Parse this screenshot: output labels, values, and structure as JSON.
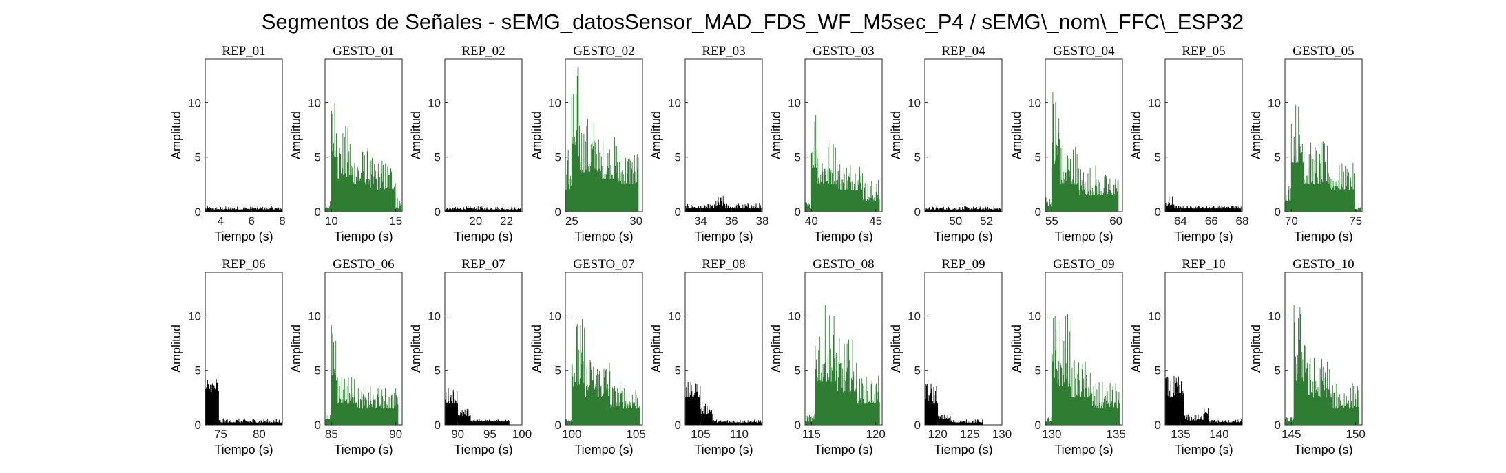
{
  "figure_title": "Segmentos de Señales - sEMG_datosSensor_MAD_FDS_WF_M5sec_P4 / sEMG\\_nom\\_FFC\\_ESP32",
  "colors": {
    "rest": "#000000",
    "gesture": "#2e7d32",
    "axes": "#262626"
  },
  "chart_data": [
    {
      "type": "bar",
      "title": "REP_01",
      "xlabel": "Tiempo (s)",
      "ylabel": "Amplitud",
      "xlim": [
        3,
        8
      ],
      "ylim": [
        0,
        14
      ],
      "xticks": [
        4,
        6,
        8
      ],
      "yticks": [
        0,
        5,
        10
      ],
      "color": "rest",
      "segments": [
        [
          3,
          8,
          0.2,
          0.5
        ]
      ]
    },
    {
      "type": "bar",
      "title": "GESTO_01",
      "xlabel": "Tiempo (s)",
      "ylabel": "Amplitud",
      "xlim": [
        9.5,
        15.5
      ],
      "ylim": [
        0,
        14
      ],
      "xticks": [
        10,
        15
      ],
      "yticks": [
        0,
        5,
        10
      ],
      "color": "gesture",
      "segments": [
        [
          9.5,
          10.0,
          0.3,
          1.0
        ],
        [
          10.0,
          10.5,
          5.0,
          11.5
        ],
        [
          10.5,
          11.5,
          3.0,
          8.0
        ],
        [
          11.5,
          13.0,
          2.5,
          6.0
        ],
        [
          13.0,
          15.0,
          2.0,
          5.0
        ],
        [
          15.0,
          15.5,
          0.3,
          1.5
        ]
      ]
    },
    {
      "type": "bar",
      "title": "REP_02",
      "xlabel": "Tiempo (s)",
      "ylabel": "Amplitud",
      "xlim": [
        18,
        23
      ],
      "ylim": [
        0,
        14
      ],
      "xticks": [
        20,
        22
      ],
      "yticks": [
        0,
        5,
        10
      ],
      "color": "rest",
      "segments": [
        [
          18,
          23,
          0.2,
          0.5
        ]
      ]
    },
    {
      "type": "bar",
      "title": "GESTO_02",
      "xlabel": "Tiempo (s)",
      "ylabel": "Amplitud",
      "xlim": [
        24.5,
        30.5
      ],
      "ylim": [
        0,
        14
      ],
      "xticks": [
        25,
        30
      ],
      "yticks": [
        0,
        5,
        10
      ],
      "color": "gesture",
      "segments": [
        [
          24.5,
          25.0,
          2.0,
          7.0
        ],
        [
          25.0,
          25.6,
          5.0,
          14.0
        ],
        [
          25.6,
          27.0,
          3.5,
          9.0
        ],
        [
          27.0,
          28.5,
          3.0,
          7.0
        ],
        [
          28.5,
          30.2,
          2.5,
          6.0
        ]
      ]
    },
    {
      "type": "bar",
      "title": "REP_03",
      "xlabel": "Tiempo (s)",
      "ylabel": "Amplitud",
      "xlim": [
        33,
        38
      ],
      "ylim": [
        0,
        14
      ],
      "xticks": [
        34,
        36,
        38
      ],
      "yticks": [
        0,
        5,
        10
      ],
      "color": "rest",
      "segments": [
        [
          33,
          35,
          0.3,
          0.7
        ],
        [
          35,
          35.6,
          0.5,
          1.5
        ],
        [
          35.6,
          38,
          0.3,
          0.8
        ]
      ]
    },
    {
      "type": "bar",
      "title": "GESTO_03",
      "xlabel": "Tiempo (s)",
      "ylabel": "Amplitud",
      "xlim": [
        39.5,
        45.5
      ],
      "ylim": [
        0,
        14
      ],
      "xticks": [
        40,
        45
      ],
      "yticks": [
        0,
        5,
        10
      ],
      "color": "gesture",
      "segments": [
        [
          39.5,
          40.0,
          0.3,
          1.0
        ],
        [
          40.0,
          40.5,
          4.0,
          11.0
        ],
        [
          40.5,
          42.0,
          2.5,
          7.0
        ],
        [
          42.0,
          44.0,
          2.0,
          5.0
        ],
        [
          44.0,
          45.3,
          1.0,
          3.0
        ]
      ]
    },
    {
      "type": "bar",
      "title": "REP_04",
      "xlabel": "Tiempo (s)",
      "ylabel": "Amplitud",
      "xlim": [
        48,
        53
      ],
      "ylim": [
        0,
        14
      ],
      "xticks": [
        50,
        52
      ],
      "yticks": [
        0,
        5,
        10
      ],
      "color": "rest",
      "segments": [
        [
          48,
          53,
          0.2,
          0.5
        ]
      ]
    },
    {
      "type": "bar",
      "title": "GESTO_04",
      "xlabel": "Tiempo (s)",
      "ylabel": "Amplitud",
      "xlim": [
        54.5,
        60.5
      ],
      "ylim": [
        0,
        14
      ],
      "xticks": [
        55,
        60
      ],
      "yticks": [
        0,
        5,
        10
      ],
      "color": "gesture",
      "segments": [
        [
          54.5,
          55.0,
          0.5,
          1.5
        ],
        [
          55.0,
          55.6,
          4.0,
          12.5
        ],
        [
          55.6,
          57.0,
          2.5,
          6.5
        ],
        [
          57.0,
          58.5,
          1.5,
          4.5
        ],
        [
          58.5,
          60.2,
          1.5,
          3.5
        ]
      ]
    },
    {
      "type": "bar",
      "title": "REP_05",
      "xlabel": "Tiempo (s)",
      "ylabel": "Amplitud",
      "xlim": [
        63,
        68
      ],
      "ylim": [
        0,
        14
      ],
      "xticks": [
        64,
        66,
        68
      ],
      "yticks": [
        0,
        5,
        10
      ],
      "color": "rest",
      "segments": [
        [
          63,
          63.6,
          0.5,
          1.5
        ],
        [
          63.6,
          68,
          0.3,
          0.6
        ]
      ]
    },
    {
      "type": "bar",
      "title": "GESTO_05",
      "xlabel": "Tiempo (s)",
      "ylabel": "Amplitud",
      "xlim": [
        69.5,
        75.5
      ],
      "ylim": [
        0,
        14
      ],
      "xticks": [
        70,
        75
      ],
      "yticks": [
        0,
        5,
        10
      ],
      "color": "gesture",
      "segments": [
        [
          69.5,
          70.0,
          1.0,
          3.0
        ],
        [
          70.0,
          71.0,
          4.5,
          10.5
        ],
        [
          71.0,
          73.0,
          2.5,
          6.5
        ],
        [
          73.0,
          74.9,
          2.0,
          4.5
        ],
        [
          74.9,
          75.5,
          0.2,
          0.5
        ]
      ]
    },
    {
      "type": "bar",
      "title": "REP_06",
      "xlabel": "Tiempo (s)",
      "ylabel": "Amplitud",
      "xlim": [
        73,
        83
      ],
      "ylim": [
        0,
        14
      ],
      "xticks": [
        75,
        80
      ],
      "yticks": [
        0,
        5,
        10
      ],
      "color": "rest",
      "segments": [
        [
          73,
          74.8,
          3.0,
          4.5
        ],
        [
          74.8,
          83,
          0.2,
          0.6
        ]
      ]
    },
    {
      "type": "bar",
      "title": "GESTO_06",
      "xlabel": "Tiempo (s)",
      "ylabel": "Amplitud",
      "xlim": [
        84.5,
        90.5
      ],
      "ylim": [
        0,
        14
      ],
      "xticks": [
        85,
        90
      ],
      "yticks": [
        0,
        5,
        10
      ],
      "color": "gesture",
      "segments": [
        [
          84.5,
          85.0,
          0.5,
          1.0
        ],
        [
          85.0,
          85.5,
          4.0,
          11.0
        ],
        [
          85.5,
          87.0,
          2.0,
          5.0
        ],
        [
          87.0,
          90.2,
          1.5,
          3.5
        ]
      ]
    },
    {
      "type": "bar",
      "title": "REP_07",
      "xlabel": "Tiempo (s)",
      "ylabel": "Amplitud",
      "xlim": [
        88,
        100
      ],
      "ylim": [
        0,
        14
      ],
      "xticks": [
        90,
        95,
        100
      ],
      "yticks": [
        0,
        5,
        10
      ],
      "color": "rest",
      "segments": [
        [
          88,
          90,
          2.0,
          3.5
        ],
        [
          90,
          92,
          0.8,
          1.5
        ],
        [
          92,
          98,
          0.3,
          0.5
        ]
      ]
    },
    {
      "type": "bar",
      "title": "GESTO_07",
      "xlabel": "Tiempo (s)",
      "ylabel": "Amplitud",
      "xlim": [
        99.5,
        105.5
      ],
      "ylim": [
        0,
        14
      ],
      "xticks": [
        100,
        105
      ],
      "yticks": [
        0,
        5,
        10
      ],
      "color": "gesture",
      "segments": [
        [
          99.5,
          100.0,
          0.3,
          1.0
        ],
        [
          100.0,
          101.0,
          3.5,
          10.0
        ],
        [
          101.0,
          103.0,
          2.5,
          6.5
        ],
        [
          103.0,
          105.3,
          1.5,
          4.0
        ]
      ]
    },
    {
      "type": "bar",
      "title": "REP_08",
      "xlabel": "Tiempo (s)",
      "ylabel": "Amplitud",
      "xlim": [
        103,
        113
      ],
      "ylim": [
        0,
        14
      ],
      "xticks": [
        105,
        110
      ],
      "yticks": [
        0,
        5,
        10
      ],
      "color": "rest",
      "segments": [
        [
          103,
          105,
          2.5,
          4.0
        ],
        [
          105,
          106.5,
          1.0,
          2.0
        ],
        [
          106.5,
          113,
          0.2,
          0.5
        ]
      ]
    },
    {
      "type": "bar",
      "title": "GESTO_08",
      "xlabel": "Tiempo (s)",
      "ylabel": "Amplitud",
      "xlim": [
        114.5,
        120.5
      ],
      "ylim": [
        0,
        14
      ],
      "xticks": [
        115,
        120
      ],
      "yticks": [
        0,
        5,
        10
      ],
      "color": "gesture",
      "segments": [
        [
          114.5,
          115.3,
          0.3,
          1.0
        ],
        [
          115.3,
          117.0,
          4.0,
          11.0
        ],
        [
          117.0,
          118.5,
          3.0,
          8.0
        ],
        [
          118.5,
          120.3,
          2.0,
          4.5
        ]
      ]
    },
    {
      "type": "bar",
      "title": "REP_09",
      "xlabel": "Tiempo (s)",
      "ylabel": "Amplitud",
      "xlim": [
        118,
        130
      ],
      "ylim": [
        0,
        14
      ],
      "xticks": [
        120,
        125,
        130
      ],
      "yticks": [
        0,
        5,
        10
      ],
      "color": "rest",
      "segments": [
        [
          118,
          120,
          2.0,
          4.0
        ],
        [
          120,
          122,
          0.5,
          1.0
        ],
        [
          122,
          127,
          0.2,
          0.5
        ]
      ]
    },
    {
      "type": "bar",
      "title": "GESTO_09",
      "xlabel": "Tiempo (s)",
      "ylabel": "Amplitud",
      "xlim": [
        129.5,
        135.5
      ],
      "ylim": [
        0,
        14
      ],
      "xticks": [
        130,
        135
      ],
      "yticks": [
        0,
        5,
        10
      ],
      "color": "gesture",
      "segments": [
        [
          129.5,
          130.0,
          0.3,
          0.8
        ],
        [
          130.0,
          131.5,
          3.5,
          10.5
        ],
        [
          131.5,
          133.0,
          2.5,
          6.0
        ],
        [
          133.0,
          135.3,
          1.5,
          4.0
        ]
      ]
    },
    {
      "type": "bar",
      "title": "REP_10",
      "xlabel": "Tiempo (s)",
      "ylabel": "Amplitud",
      "xlim": [
        133,
        143
      ],
      "ylim": [
        0,
        14
      ],
      "xticks": [
        135,
        140
      ],
      "yticks": [
        0,
        5,
        10
      ],
      "color": "rest",
      "segments": [
        [
          133,
          135.5,
          2.5,
          4.5
        ],
        [
          135.5,
          138,
          0.4,
          1.0
        ],
        [
          138,
          138.6,
          1.0,
          2.3
        ],
        [
          138.6,
          143,
          0.2,
          0.5
        ]
      ]
    },
    {
      "type": "bar",
      "title": "GESTO_10",
      "xlabel": "Tiempo (s)",
      "ylabel": "Amplitud",
      "xlim": [
        144.5,
        150.5
      ],
      "ylim": [
        0,
        14
      ],
      "xticks": [
        145,
        150
      ],
      "yticks": [
        0,
        5,
        10
      ],
      "color": "gesture",
      "segments": [
        [
          144.5,
          145.2,
          0.3,
          0.8
        ],
        [
          145.2,
          146.3,
          4.0,
          11.5
        ],
        [
          146.3,
          148.0,
          2.5,
          6.5
        ],
        [
          148.0,
          150.3,
          1.5,
          4.0
        ]
      ]
    }
  ]
}
